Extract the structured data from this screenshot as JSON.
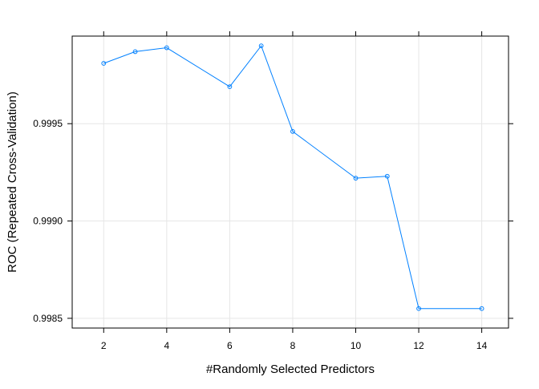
{
  "chart_data": {
    "type": "line",
    "title": "",
    "xlabel": "#Randomly Selected Predictors",
    "ylabel": "ROC (Repeated Cross-Validation)",
    "xlim": [
      1.0,
      14.85
    ],
    "ylim": [
      0.99845,
      0.99995
    ],
    "x_ticks": [
      2,
      4,
      6,
      8,
      10,
      12,
      14
    ],
    "x_tick_labels": [
      "2",
      "4",
      "6",
      "8",
      "10",
      "12",
      "14"
    ],
    "y_ticks": [
      0.9985,
      0.999,
      0.9995
    ],
    "y_tick_labels": [
      "0.9985",
      "0.9990",
      "0.9995"
    ],
    "grid": true,
    "series": [
      {
        "x": [
          2,
          3,
          4,
          6,
          7,
          8,
          10,
          11,
          12,
          14
        ],
        "y": [
          0.99981,
          0.99987,
          0.99989,
          0.99969,
          0.9999,
          0.99946,
          0.99922,
          0.99923,
          0.99855,
          0.99855
        ],
        "color": "#0080ff",
        "marker": "circle"
      }
    ]
  }
}
